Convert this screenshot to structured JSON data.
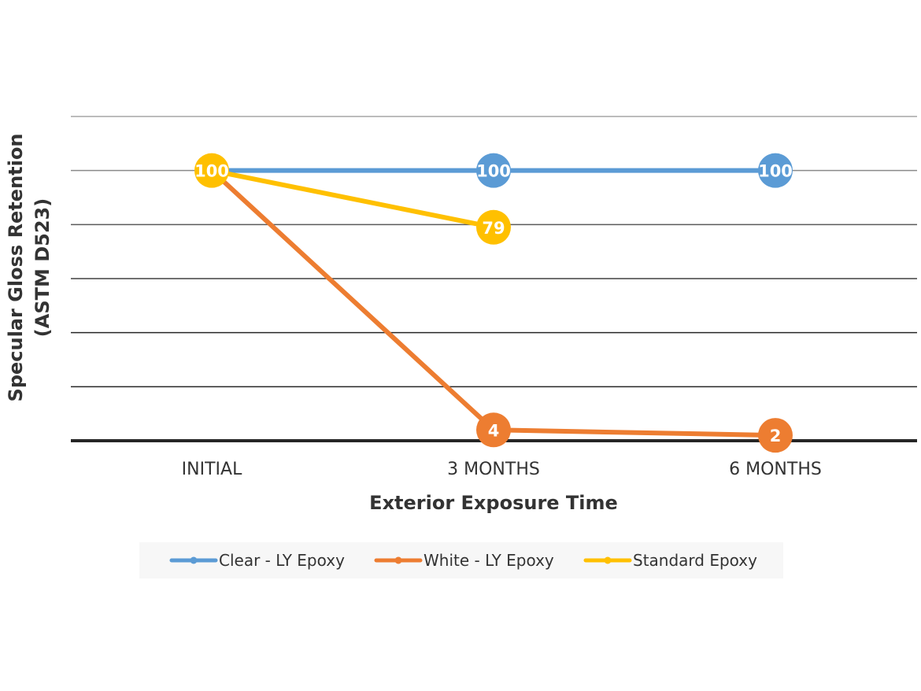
{
  "chart_data": {
    "type": "line",
    "title": "",
    "xlabel": "Exterior Exposure Time",
    "ylabel_line1": "Specular Gloss Retention",
    "ylabel_line2": "(ASTM D523)",
    "categories": [
      "INITIAL",
      "3 MONTHS",
      "6 MONTHS"
    ],
    "ylim": [
      0,
      120
    ],
    "grid": true,
    "legend_position": "bottom",
    "series": [
      {
        "name": "Clear - LY Epoxy",
        "color": "#5b9bd5",
        "values": [
          100,
          100,
          100
        ],
        "labels": [
          "",
          "100",
          "100"
        ]
      },
      {
        "name": "White - LY Epoxy",
        "color": "#ed7d31",
        "values": [
          100,
          4,
          2
        ],
        "labels": [
          "",
          "4",
          "2"
        ]
      },
      {
        "name": "Standard Epoxy",
        "color": "#ffc000",
        "values": [
          100,
          79,
          null
        ],
        "labels": [
          "100",
          "79",
          ""
        ]
      }
    ]
  }
}
